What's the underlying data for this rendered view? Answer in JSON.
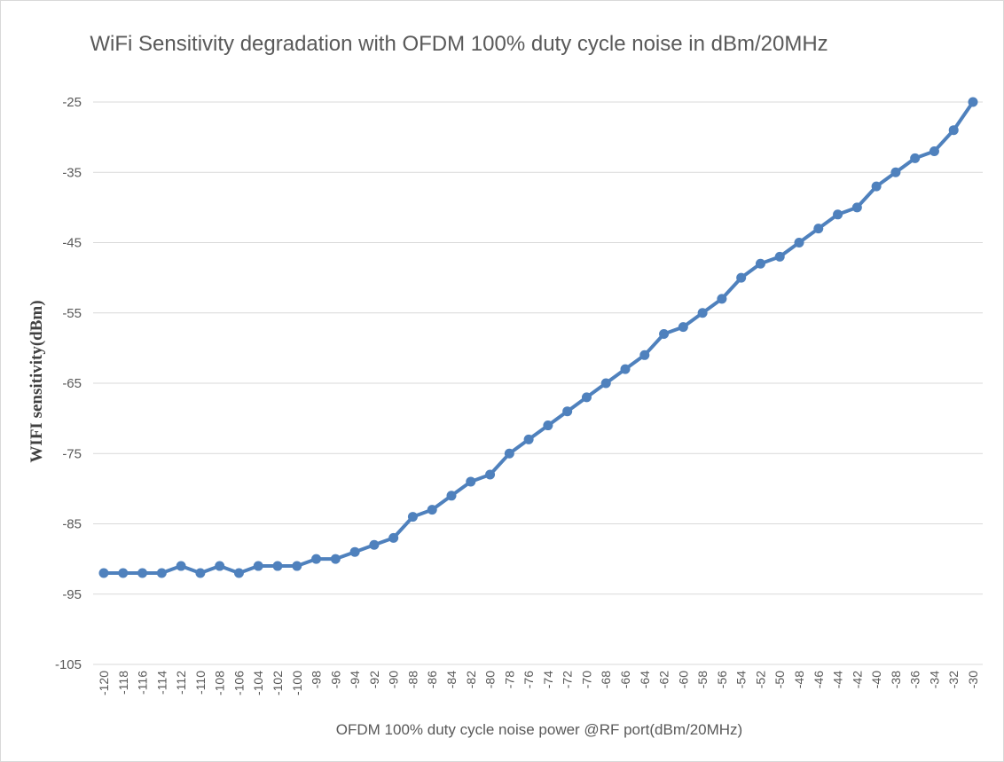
{
  "chart_data": {
    "type": "line",
    "title": "WiFi Sensitivity degradation with OFDM 100% duty cycle noise in dBm/20MHz",
    "xlabel": "OFDM 100% duty cycle noise  power @RF port(dBm/20MHz)",
    "ylabel": "WIFI sensitivity(dBm)",
    "ylim": [
      -105,
      -25
    ],
    "yticks": [
      -25,
      -35,
      -45,
      -55,
      -65,
      -75,
      -85,
      -95,
      -105
    ],
    "grid": true,
    "legend": "none",
    "categories": [
      "-120",
      "-118",
      "-116",
      "-114",
      "-112",
      "-110",
      "-108",
      "-106",
      "-104",
      "-102",
      "-100",
      "-98",
      "-96",
      "-94",
      "-92",
      "-90",
      "-88",
      "-86",
      "-84",
      "-82",
      "-80",
      "-78",
      "-76",
      "-74",
      "-72",
      "-70",
      "-68",
      "-66",
      "-64",
      "-62",
      "-60",
      "-58",
      "-56",
      "-54",
      "-52",
      "-50",
      "-48",
      "-46",
      "-44",
      "-42",
      "-40",
      "-38",
      "-36",
      "-34",
      "-32",
      "-30"
    ],
    "series": [
      {
        "values": [
          -92,
          -92,
          -92,
          -92,
          -91,
          -92,
          -91,
          -92,
          -91,
          -91,
          -91,
          -90,
          -90,
          -89,
          -88,
          -87,
          -84,
          -83,
          -81,
          -79,
          -78,
          -75,
          -73,
          -71,
          -69,
          -67,
          -65,
          -63,
          -61,
          -58,
          -57,
          -55,
          -53,
          -50,
          -48,
          -47,
          -45,
          -43,
          -41,
          -40,
          -37,
          -35,
          -33,
          -32,
          -29,
          -25
        ],
        "color": "#4f81bd"
      }
    ],
    "colors": {
      "line": "#4f81bd",
      "grid": "#d9d9d9",
      "text": "#595959"
    }
  }
}
